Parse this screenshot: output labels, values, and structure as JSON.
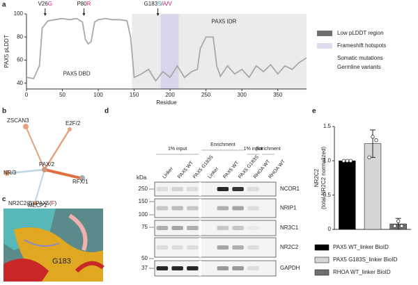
{
  "panels": {
    "a": "a",
    "b": "b",
    "c": "c",
    "d": "d",
    "e": "e"
  },
  "chart_data": [
    {
      "type": "line",
      "y_label": "PAX5 pLDDT",
      "x_label": "Residue",
      "color": "#a8a8a8",
      "x": [
        1,
        10,
        18,
        22,
        30,
        40,
        50,
        60,
        70,
        78,
        82,
        86,
        90,
        95,
        100,
        110,
        120,
        130,
        140,
        145,
        150,
        160,
        170,
        180,
        190,
        200,
        210,
        220,
        230,
        238,
        242,
        250,
        260,
        265,
        270,
        280,
        290,
        300,
        310,
        320,
        330,
        340,
        350,
        360,
        370,
        380,
        390
      ],
      "values": [
        45,
        44,
        55,
        88,
        94,
        95,
        96,
        95,
        96,
        93,
        78,
        74,
        76,
        93,
        95,
        96,
        95,
        95,
        94,
        80,
        45,
        48,
        52,
        42,
        50,
        45,
        55,
        45,
        50,
        52,
        70,
        80,
        80,
        55,
        46,
        55,
        48,
        52,
        45,
        55,
        50,
        56,
        48,
        55,
        52,
        58,
        62
      ],
      "xlim": [
        0,
        390
      ],
      "xticks": [
        0,
        50,
        100,
        150,
        200,
        250,
        300,
        350
      ],
      "ylim": [
        35,
        100
      ],
      "yticks": [
        40,
        60,
        80,
        100
      ],
      "regions": [
        {
          "name": "Low pLDDT region",
          "text": "PAX5 IDR",
          "from": 147,
          "to": 390,
          "color": "#ebebeb",
          "swatch": "#6e6e6e"
        },
        {
          "name": "Frameshift hotspots",
          "from": 187,
          "to": 212,
          "color": "#d8d6ea",
          "swatch": "#dcdcee"
        }
      ],
      "domain_label": "PAX5 DBD",
      "annotations": [
        {
          "x": 26,
          "parts": [
            {
              "text": "V26",
              "color": "#222"
            },
            {
              "text": "G",
              "color": "#e0197d"
            }
          ]
        },
        {
          "x": 80,
          "parts": [
            {
              "text": "P80",
              "color": "#222"
            },
            {
              "text": "R",
              "color": "#e0197d"
            }
          ]
        },
        {
          "x": 183,
          "parts": [
            {
              "text": "G183",
              "color": "#222"
            },
            {
              "text": "S",
              "color": "#27a9c4"
            },
            {
              "text": "/",
              "color": "#222"
            },
            {
              "text": "A",
              "color": "#e0197d"
            },
            {
              "text": "/",
              "color": "#222"
            },
            {
              "text": "V",
              "color": "#e0197d"
            }
          ]
        }
      ],
      "text_legend": [
        {
          "name": "Somatic mutations",
          "color": "#e0197d"
        },
        {
          "name": "Germline variants",
          "color": "#27a9c4"
        }
      ]
    },
    {
      "type": "bar",
      "y_label": [
        "NR2C2",
        "(total NR2C2 normalized)"
      ],
      "categories": [
        "PAX5 WT_linker BioID",
        "PAX5 G183S_linker BioID",
        "RHOA WT_linker BioID"
      ],
      "values": [
        1.0,
        1.25,
        0.08
      ],
      "errors": [
        0.0,
        0.2,
        0.08
      ],
      "points": [
        [
          1.0,
          1.0,
          1.0
        ],
        [
          1.05,
          1.35,
          1.3
        ],
        [
          0.05,
          0.12,
          0.05
        ]
      ],
      "colors": [
        "#000000",
        "#d6d6d6",
        "#707070"
      ],
      "ylim": [
        0,
        1.5
      ],
      "yticks": [
        0,
        0.5,
        {
          "value": 1,
          "label": "1.0"
        },
        1.5
      ]
    }
  ],
  "panel_b": {
    "nodes": [
      "ZSCAN3",
      "E2F/2",
      "PAX/2",
      "NR/3",
      "RFX/1",
      "MECP2"
    ]
  },
  "panel_c": {
    "parts": [
      {
        "text": "NR2C2(B) PAX5(",
        "color": "#222"
      },
      {
        "text": "F",
        "color": "#d01c1c"
      },
      {
        "text": ")",
        "color": "#222"
      }
    ],
    "residue": "G183"
  },
  "panel_d": {
    "kda_label": "kDa",
    "groups": [
      "1% input",
      "Enrichment",
      "1% input",
      "Enrichment"
    ],
    "lanes": [
      "Linker",
      "PAX5 WT",
      "PAX5 G183S",
      "Linker",
      "PAX5 WT",
      "PAX5 G183S",
      "RHOA WT",
      "RHOA WT"
    ],
    "kda": [
      250,
      150,
      100,
      75,
      50,
      37
    ],
    "rows": [
      "NCOR1",
      "NRIP1",
      "NR3C1",
      "NR2C2",
      "GAPDH"
    ]
  }
}
